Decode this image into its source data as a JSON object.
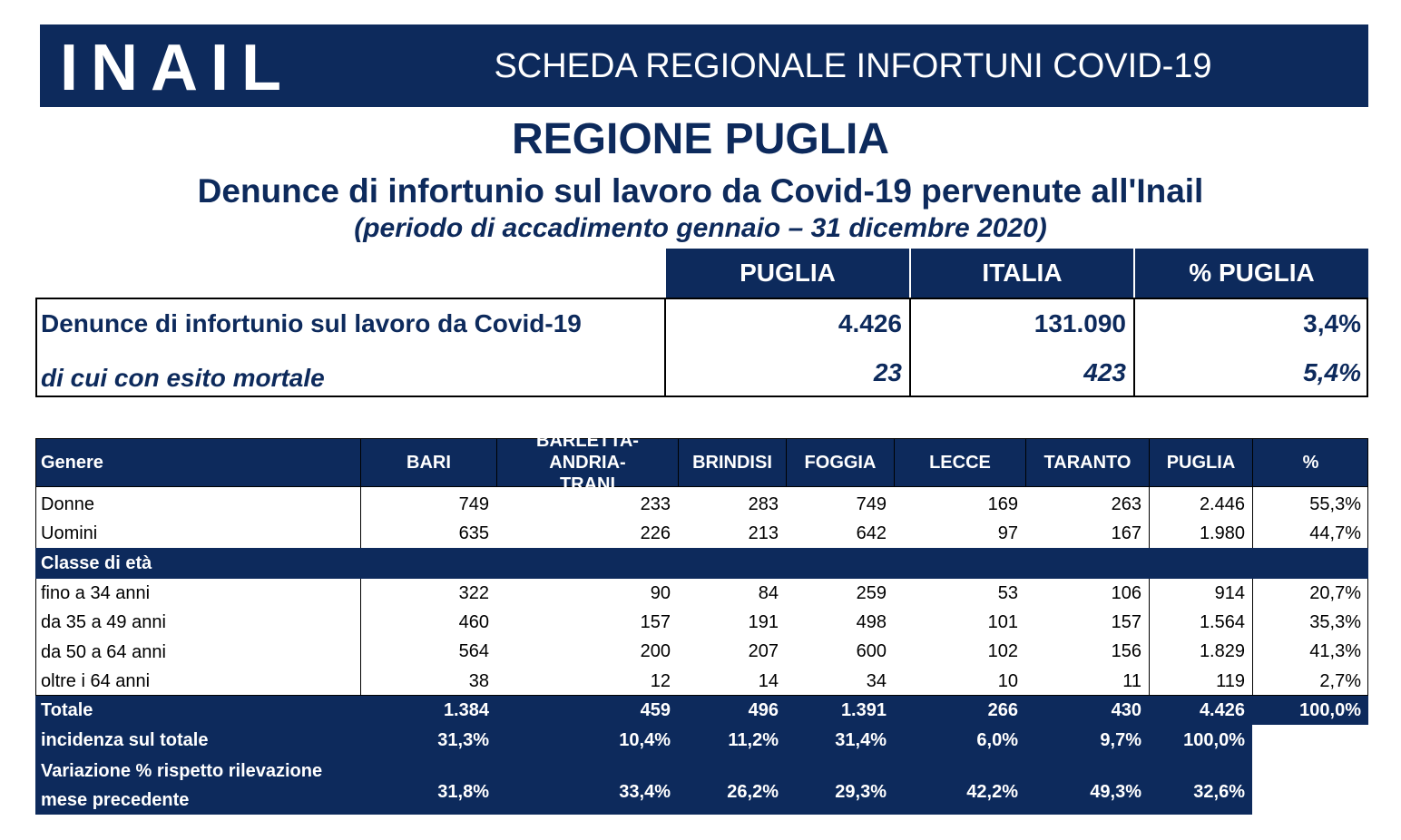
{
  "header": {
    "logo": "INAIL",
    "title": "SCHEDA REGIONALE INFORTUNI COVID-19"
  },
  "region": "REGIONE PUGLIA",
  "subtitle": "Denunce di infortunio sul lavoro da Covid-19 pervenute all'Inail",
  "period": "(periodo di accadimento gennaio – 31 dicembre 2020)",
  "summary": {
    "columns": [
      "PUGLIA",
      "ITALIA",
      "% PUGLIA"
    ],
    "rows": [
      {
        "label": "Denunce di infortunio sul lavoro da Covid-19",
        "values": [
          "4.426",
          "131.090",
          "3,4%"
        ]
      },
      {
        "label": "di cui con esito mortale",
        "values": [
          "23",
          "423",
          "5,4%"
        ]
      }
    ]
  },
  "table": {
    "columns": [
      "Genere",
      "BARI",
      "BARLETTA-ANDRIA-TRANI",
      "BRINDISI",
      "FOGGIA",
      "LECCE",
      "TARANTO",
      "PUGLIA",
      "%"
    ],
    "rows": [
      {
        "label": "Donne",
        "values": [
          "749",
          "233",
          "283",
          "749",
          "169",
          "263",
          "2.446",
          "55,3%"
        ]
      },
      {
        "label": "Uomini",
        "values": [
          "635",
          "226",
          "213",
          "642",
          "97",
          "167",
          "1.980",
          "44,7%"
        ]
      },
      {
        "label": "Classe di età",
        "values": []
      },
      {
        "label": "fino a 34 anni",
        "values": [
          "322",
          "90",
          "84",
          "259",
          "53",
          "106",
          "914",
          "20,7%"
        ]
      },
      {
        "label": "da 35 a 49 anni",
        "values": [
          "460",
          "157",
          "191",
          "498",
          "101",
          "157",
          "1.564",
          "35,3%"
        ]
      },
      {
        "label": "da 50 a 64 anni",
        "values": [
          "564",
          "200",
          "207",
          "600",
          "102",
          "156",
          "1.829",
          "41,3%"
        ]
      },
      {
        "label": "oltre i 64 anni",
        "values": [
          "38",
          "12",
          "14",
          "34",
          "10",
          "11",
          "119",
          "2,7%"
        ]
      },
      {
        "label": "Totale",
        "values": [
          "1.384",
          "459",
          "496",
          "1.391",
          "266",
          "430",
          "4.426",
          "100,0%"
        ]
      },
      {
        "label": "incidenza sul totale",
        "values": [
          "31,3%",
          "10,4%",
          "11,2%",
          "31,4%",
          "6,0%",
          "9,7%",
          "100,0%"
        ]
      },
      {
        "label": "Variazione % rispetto rilevazione mese precedente",
        "values": [
          "31,8%",
          "33,4%",
          "26,2%",
          "29,3%",
          "42,2%",
          "49,3%",
          "32,6%"
        ]
      }
    ]
  }
}
